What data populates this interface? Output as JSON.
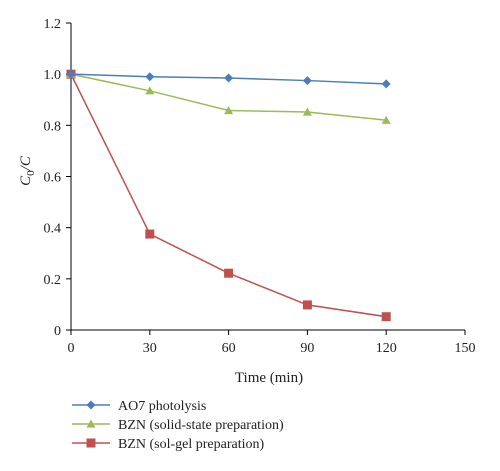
{
  "chart_data": {
    "type": "line",
    "xlabel": "Time (min)",
    "ylabel_main": "C",
    "ylabel_sub": "0",
    "ylabel_tail": "/C",
    "xlim": [
      0,
      150
    ],
    "ylim": [
      0,
      1.2
    ],
    "x_ticks": [
      0,
      30,
      60,
      90,
      120,
      150
    ],
    "y_ticks": [
      0,
      0.2,
      0.4,
      0.6,
      0.8,
      1.0,
      1.2
    ],
    "x_tick_labels": [
      "0",
      "30",
      "60",
      "90",
      "120",
      "150"
    ],
    "y_tick_labels": [
      "0",
      "0.2",
      "0.4",
      "0.6",
      "0.8",
      "1.0",
      "1.2"
    ],
    "grid": false,
    "legend_position": "bottom-left",
    "series": [
      {
        "name": "AO7 photolysis",
        "marker": "diamond",
        "color": "#4a7ebb",
        "x": [
          0,
          30,
          60,
          90,
          120
        ],
        "values": [
          1.0,
          0.99,
          0.985,
          0.975,
          0.962
        ]
      },
      {
        "name": "BZN (solid-state preparation)",
        "marker": "triangle",
        "color": "#9bbb59",
        "x": [
          0,
          30,
          60,
          90,
          120
        ],
        "values": [
          1.0,
          0.935,
          0.858,
          0.852,
          0.82
        ]
      },
      {
        "name": "BZN (sol-gel preparation)",
        "marker": "square",
        "color": "#c0504d",
        "x": [
          0,
          30,
          60,
          90,
          120
        ],
        "values": [
          1.0,
          0.375,
          0.222,
          0.098,
          0.052
        ]
      }
    ]
  }
}
